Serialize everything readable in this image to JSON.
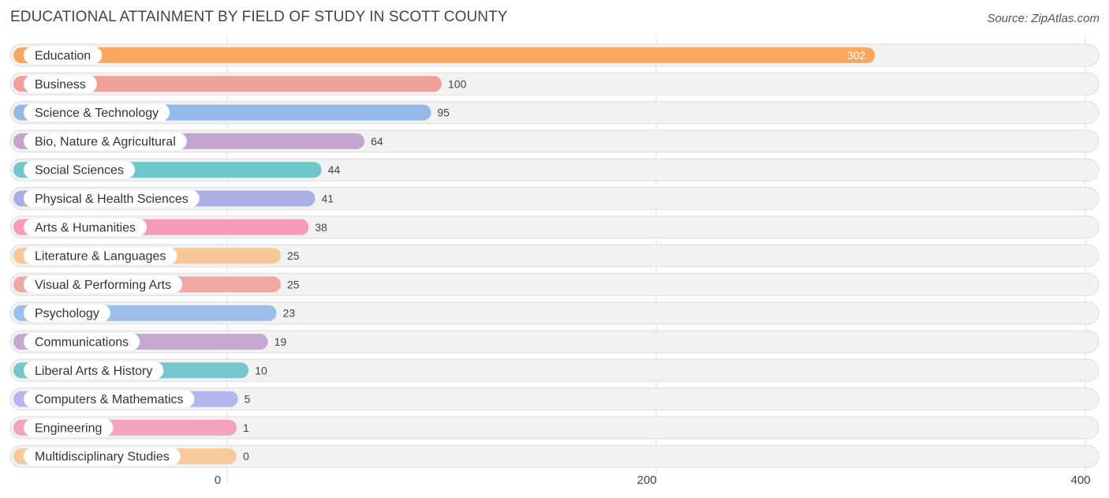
{
  "chart_data": {
    "type": "bar",
    "orientation": "horizontal",
    "title": "EDUCATIONAL ATTAINMENT BY FIELD OF STUDY IN SCOTT COUNTY",
    "source": "Source: ZipAtlas.com",
    "xlim": [
      0,
      400
    ],
    "ticks": [
      0,
      200,
      400
    ],
    "tick_labels": [
      "0",
      "200",
      "400"
    ],
    "categories": [
      "Education",
      "Business",
      "Science & Technology",
      "Bio, Nature & Agricultural",
      "Social Sciences",
      "Physical & Health Sciences",
      "Arts & Humanities",
      "Literature & Languages",
      "Visual & Performing Arts",
      "Psychology",
      "Communications",
      "Liberal Arts & History",
      "Computers & Mathematics",
      "Engineering",
      "Multidisciplinary Studies"
    ],
    "values": [
      302,
      100,
      95,
      64,
      44,
      41,
      38,
      25,
      25,
      23,
      19,
      10,
      5,
      1,
      0
    ],
    "value_labels": [
      "302",
      "100",
      "95",
      "64",
      "44",
      "41",
      "38",
      "25",
      "25",
      "23",
      "19",
      "10",
      "5",
      "1",
      "0"
    ],
    "colors": [
      "#f9a85d",
      "#f0a09b",
      "#93b9e6",
      "#c4a5cd",
      "#6fc6cc",
      "#aab0e6",
      "#f79ab8",
      "#f9c795",
      "#f0a8a5",
      "#9cc0ea",
      "#c4a8d0",
      "#77c6cd",
      "#b3b7ec",
      "#f5a2bf",
      "#f8c99d"
    ],
    "grid": true
  }
}
